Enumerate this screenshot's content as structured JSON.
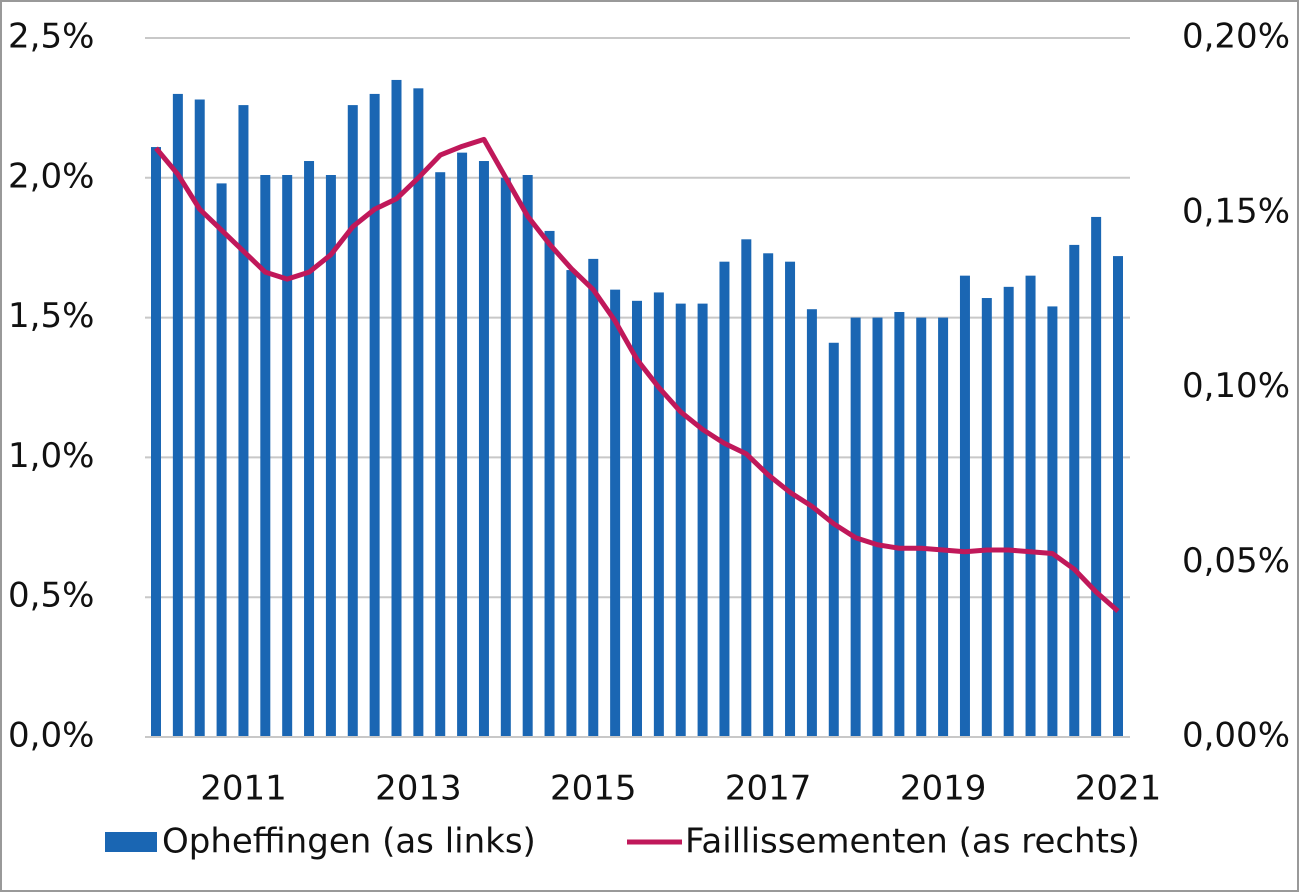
{
  "chart_data": {
    "type": "bar-line",
    "categories": [
      null,
      null,
      null,
      null,
      "2011",
      null,
      null,
      null,
      null,
      null,
      null,
      null,
      "2013",
      null,
      null,
      null,
      null,
      null,
      null,
      null,
      "2015",
      null,
      null,
      null,
      null,
      null,
      null,
      null,
      "2017",
      null,
      null,
      null,
      null,
      null,
      null,
      null,
      "2019",
      null,
      null,
      null,
      null,
      null,
      null,
      null,
      "2021"
    ],
    "series": [
      {
        "name": "Opheffingen (as links)",
        "color": "#1a66b3",
        "type": "bar",
        "axis": "y",
        "values": [
          2.11,
          2.3,
          2.28,
          1.98,
          2.26,
          2.01,
          2.01,
          2.06,
          2.01,
          2.26,
          2.3,
          2.35,
          2.32,
          2.02,
          2.09,
          2.06,
          2.0,
          2.01,
          1.81,
          1.67,
          1.71,
          1.6,
          1.56,
          1.59,
          1.55,
          1.55,
          1.7,
          1.78,
          1.73,
          1.7,
          1.53,
          1.41,
          1.5,
          1.5,
          1.52,
          1.5,
          1.5,
          1.65,
          1.57,
          1.61,
          1.65,
          1.54,
          1.76,
          1.86,
          1.72
        ]
      },
      {
        "name": "Faillissementen (as rechts)",
        "color": "#c0185a",
        "type": "line",
        "axis": "y2",
        "values": [
          0.1685,
          0.161,
          0.151,
          0.145,
          0.139,
          0.133,
          0.131,
          0.133,
          0.138,
          0.146,
          0.151,
          0.154,
          0.16,
          0.1665,
          0.169,
          0.171,
          0.16,
          0.149,
          0.141,
          0.134,
          0.128,
          0.119,
          0.108,
          0.1,
          0.093,
          0.088,
          0.084,
          0.081,
          0.075,
          0.07,
          0.066,
          0.061,
          0.057,
          0.055,
          0.054,
          0.054,
          0.0535,
          0.053,
          0.0535,
          0.0535,
          0.053,
          0.0525,
          0.048,
          0.0415,
          0.036
        ]
      }
    ],
    "ylim": [
      0,
      2.5
    ],
    "yticks": [
      {
        "value": 0,
        "label": "0,0%"
      },
      {
        "value": 0.5,
        "label": "0,5%"
      },
      {
        "value": 1,
        "label": "1,0%"
      },
      {
        "value": 1.5,
        "label": "1,5%"
      },
      {
        "value": 2,
        "label": "2,0%"
      },
      {
        "value": 2.5,
        "label": "2,5%"
      }
    ],
    "y2lim": [
      0,
      0.2
    ],
    "y2ticks": [
      {
        "value": 0,
        "label": "0,00%"
      },
      {
        "value": 0.05,
        "label": "0,05%"
      },
      {
        "value": 0.1,
        "label": "0,10%"
      },
      {
        "value": 0.15,
        "label": "0,15%"
      },
      {
        "value": 0.2,
        "label": "0,20%"
      }
    ],
    "grid": true,
    "legend": "bottom"
  }
}
